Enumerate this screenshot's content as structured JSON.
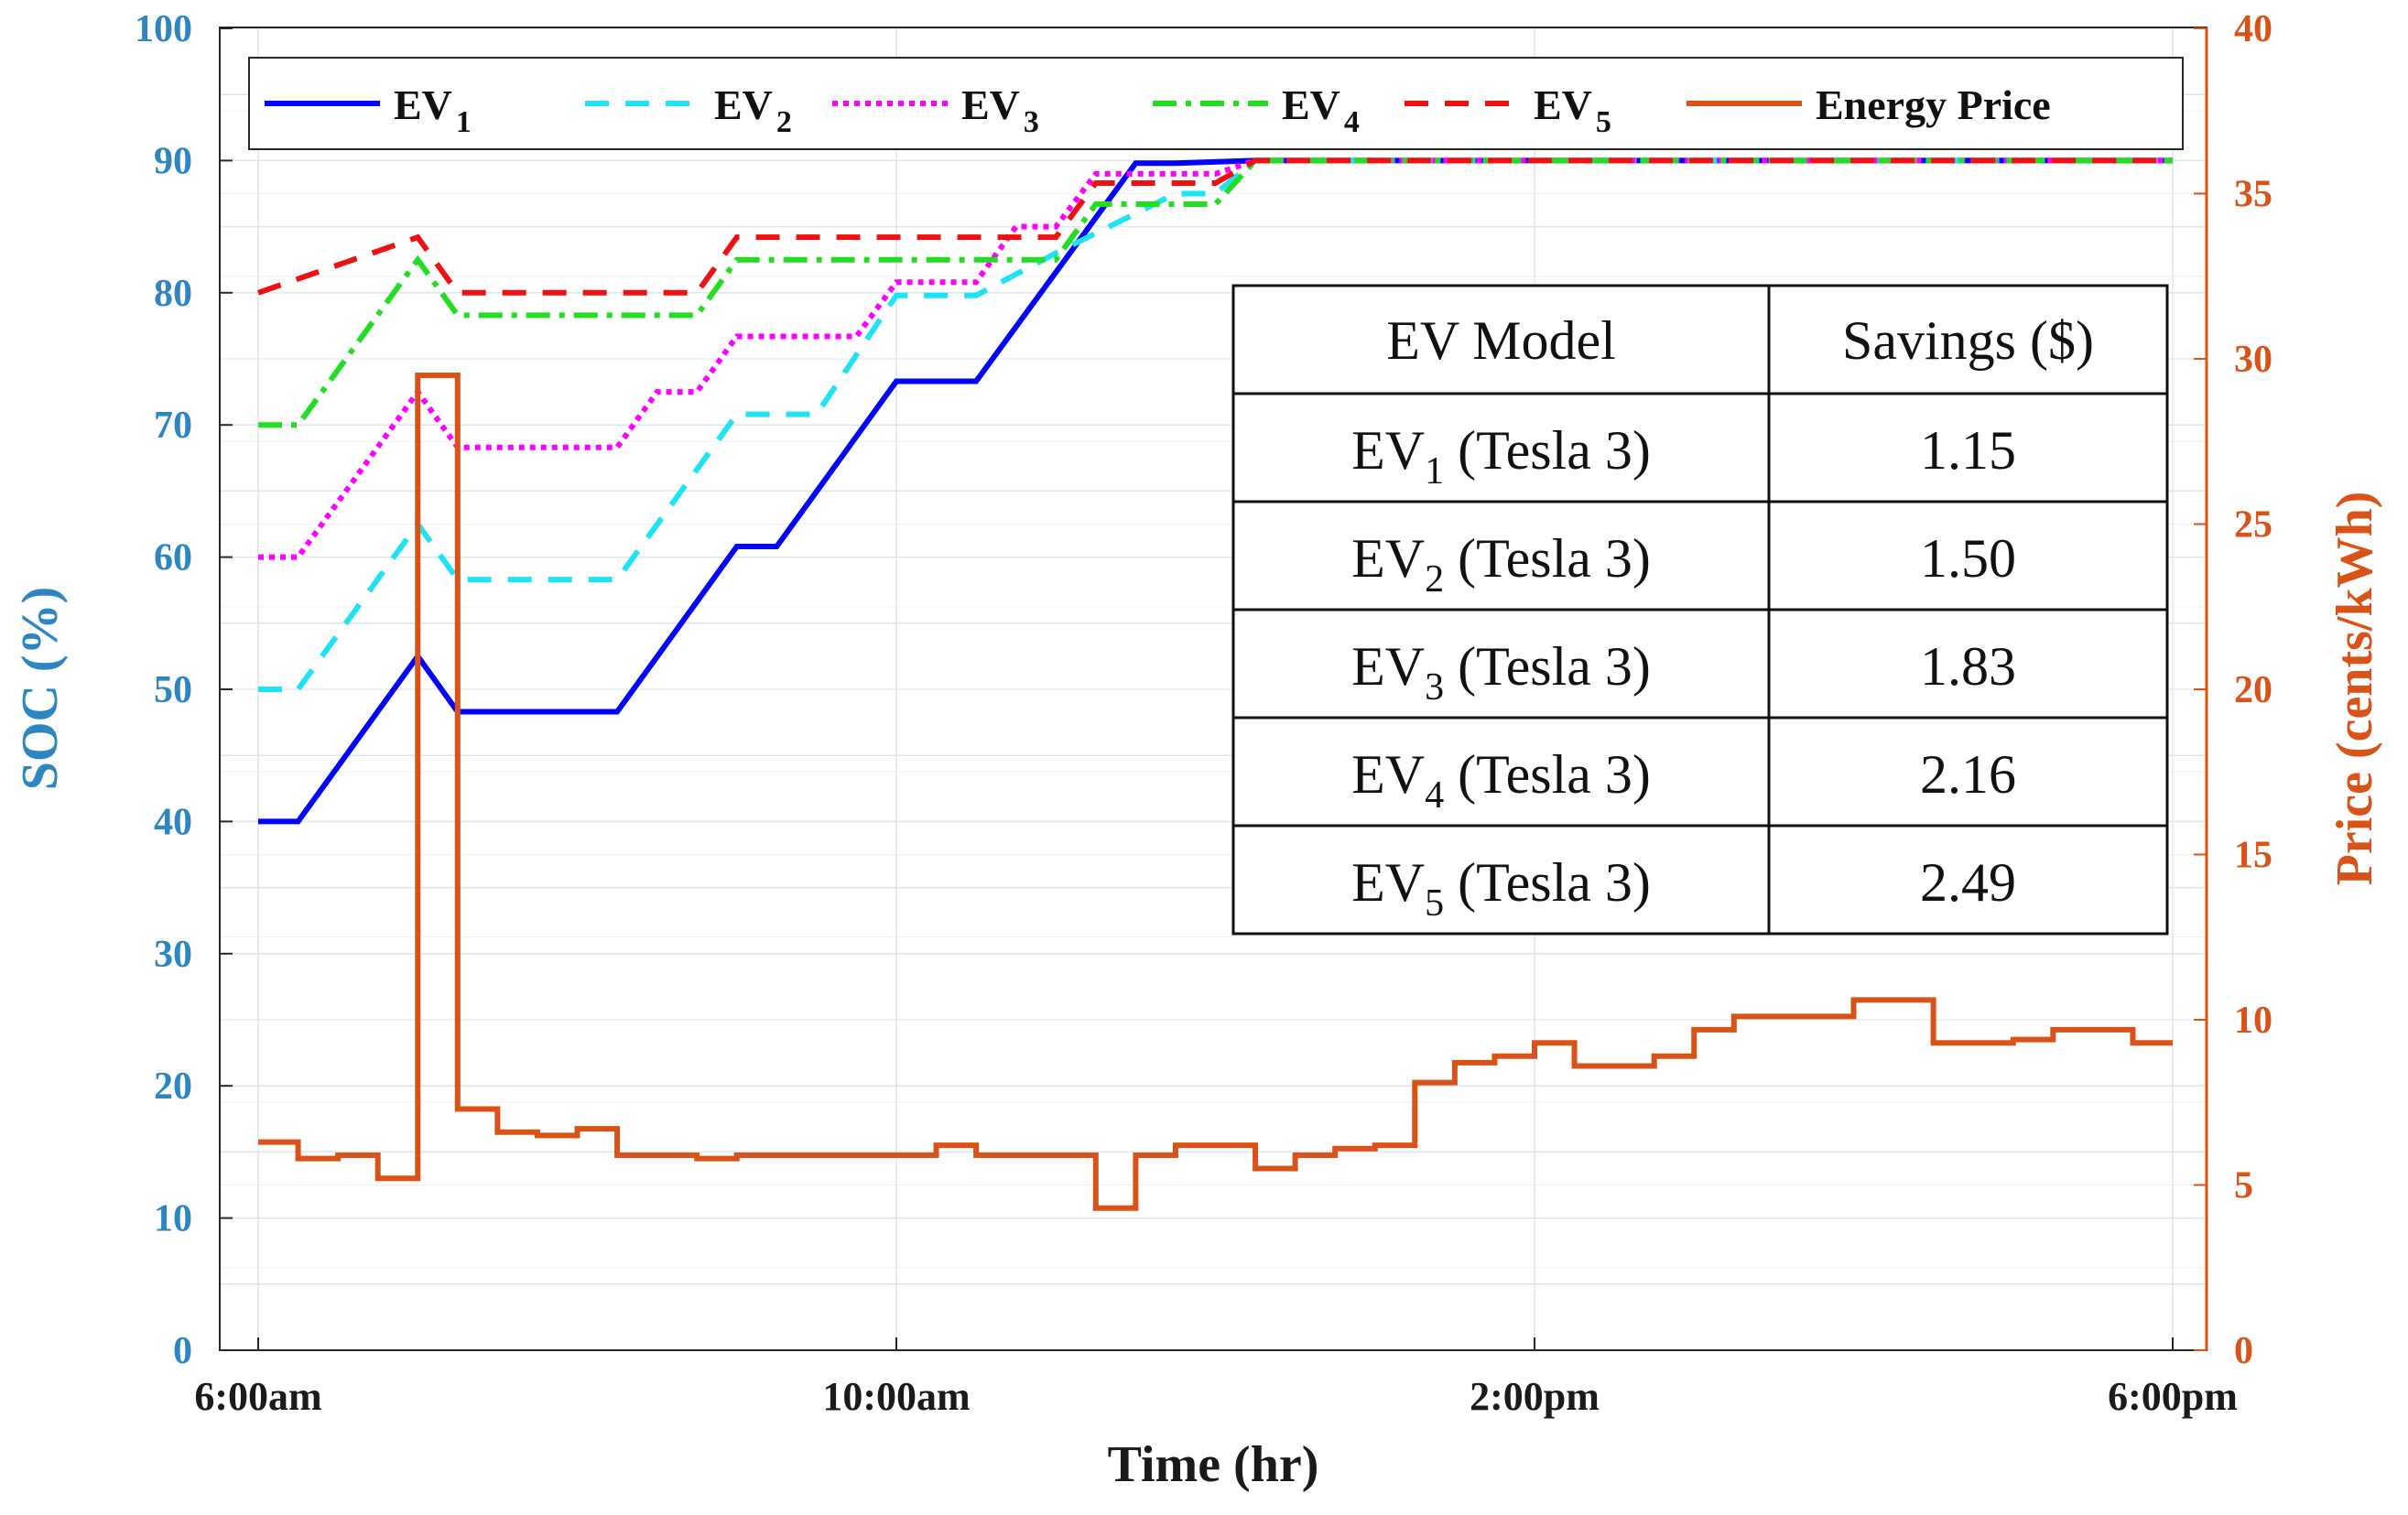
{
  "chart_data": {
    "type": "line",
    "xlabel": "Time (hr)",
    "ylabel": "SOC (%)",
    "y2label": "Price (cents/kWh)",
    "xlim": [
      6,
      18
    ],
    "ylim": [
      0,
      100
    ],
    "y2lim": [
      0,
      40
    ],
    "x_ticks": [
      {
        "value": 6,
        "label": "6:00am"
      },
      {
        "value": 10,
        "label": "10:00am"
      },
      {
        "value": 14,
        "label": "2:00pm"
      },
      {
        "value": 18,
        "label": "6:00pm"
      }
    ],
    "y_ticks": [
      0,
      10,
      20,
      30,
      40,
      50,
      60,
      70,
      80,
      90,
      100
    ],
    "y2_ticks": [
      0,
      5,
      10,
      15,
      20,
      25,
      30,
      35,
      40
    ],
    "grid": true,
    "legend_position": "top",
    "series": [
      {
        "name": "EV",
        "sub": "1",
        "axis": "left",
        "color": "#0000FF",
        "style": "solid",
        "x": [
          6.0,
          6.25,
          7.0,
          7.25,
          8.25,
          9.0,
          9.25,
          10.0,
          10.5,
          11.5,
          11.75,
          12.25
        ],
        "y": [
          40.0,
          40.0,
          52.5,
          48.3,
          48.3,
          60.8,
          60.8,
          73.3,
          73.3,
          89.8,
          89.8,
          90.0
        ]
      },
      {
        "name": "EV",
        "sub": "2",
        "axis": "left",
        "color": "#1EE3F5",
        "style": "dashed",
        "x": [
          6.0,
          6.25,
          7.0,
          7.25,
          8.25,
          9.0,
          9.5,
          10.0,
          10.5,
          11.0,
          11.75,
          12.0,
          12.25
        ],
        "y": [
          50.0,
          50.0,
          62.5,
          58.3,
          58.3,
          70.8,
          70.8,
          79.8,
          79.8,
          83.0,
          87.5,
          87.5,
          90.0
        ]
      },
      {
        "name": "EV",
        "sub": "3",
        "axis": "left",
        "color": "#FF00FF",
        "style": "dotted",
        "x": [
          6.0,
          6.25,
          7.0,
          7.25,
          8.25,
          8.5,
          8.75,
          9.0,
          9.75,
          10.0,
          10.5,
          10.75,
          11.0,
          11.25,
          11.5,
          12.0,
          12.25
        ],
        "y": [
          60.0,
          60.0,
          72.5,
          68.3,
          68.3,
          72.5,
          72.5,
          76.7,
          76.7,
          80.8,
          80.8,
          85.0,
          85.0,
          89.0,
          89.0,
          89.0,
          90.0
        ]
      },
      {
        "name": "EV",
        "sub": "4",
        "axis": "left",
        "color": "#22DD22",
        "style": "dashdot",
        "x": [
          6.0,
          6.25,
          7.0,
          7.25,
          8.75,
          9.0,
          11.0,
          11.25,
          11.5,
          12.0,
          12.25
        ],
        "y": [
          70.0,
          70.0,
          82.5,
          78.3,
          78.3,
          82.5,
          82.5,
          86.7,
          86.7,
          86.7,
          90.0
        ]
      },
      {
        "name": "EV",
        "sub": "5",
        "axis": "left",
        "color": "#EE1111",
        "style": "dashed",
        "x": [
          6.0,
          7.0,
          7.25,
          8.75,
          9.0,
          10.75,
          11.0,
          11.25,
          12.0,
          12.25
        ],
        "y": [
          80.0,
          84.2,
          80.0,
          80.0,
          84.2,
          84.2,
          84.2,
          88.3,
          88.3,
          90.0
        ]
      },
      {
        "name": "Energy Price",
        "sub": "",
        "axis": "right",
        "color": "#D95319",
        "style": "solid",
        "stairs": true,
        "x": [
          6.0,
          6.25,
          6.5,
          6.75,
          7.0,
          7.25,
          7.5,
          7.75,
          8.0,
          8.25,
          8.5,
          8.75,
          9.0,
          9.25,
          9.5,
          9.75,
          10.0,
          10.25,
          10.5,
          10.75,
          11.0,
          11.25,
          11.5,
          11.75,
          12.0,
          12.25,
          12.5,
          12.75,
          13.0,
          13.25,
          13.5,
          13.75,
          14.0,
          14.25,
          14.5,
          14.75,
          15.0,
          15.25,
          15.5,
          15.75,
          16.0,
          16.25,
          16.5,
          16.75,
          17.0,
          17.25,
          17.5,
          17.75,
          18.0
        ],
        "y": [
          6.3,
          5.8,
          5.9,
          5.2,
          29.5,
          7.3,
          6.6,
          6.5,
          6.7,
          5.9,
          5.9,
          5.8,
          5.9,
          5.9,
          5.9,
          5.9,
          5.9,
          6.2,
          5.9,
          5.9,
          5.9,
          4.3,
          5.9,
          6.2,
          6.2,
          5.5,
          5.9,
          6.1,
          6.2,
          8.1,
          8.7,
          8.9,
          9.3,
          8.6,
          8.6,
          8.9,
          9.7,
          10.1,
          10.1,
          10.1,
          10.6,
          10.6,
          9.3,
          9.3,
          9.4,
          9.7,
          9.7,
          9.3,
          9.3
        ]
      }
    ],
    "legend_label_energy": "Energy Price",
    "table": {
      "headers": [
        "EV Model",
        "Savings ($)"
      ],
      "rows": [
        {
          "ev": "EV",
          "sub": "1",
          "model": " (Tesla 3)",
          "savings": "1.15"
        },
        {
          "ev": "EV",
          "sub": "2",
          "model": " (Tesla 3)",
          "savings": "1.50"
        },
        {
          "ev": "EV",
          "sub": "3",
          "model": " (Tesla 3)",
          "savings": "1.83"
        },
        {
          "ev": "EV",
          "sub": "4",
          "model": " (Tesla 3)",
          "savings": "2.16"
        },
        {
          "ev": "EV",
          "sub": "5",
          "model": " (Tesla 3)",
          "savings": "2.49"
        }
      ]
    }
  }
}
